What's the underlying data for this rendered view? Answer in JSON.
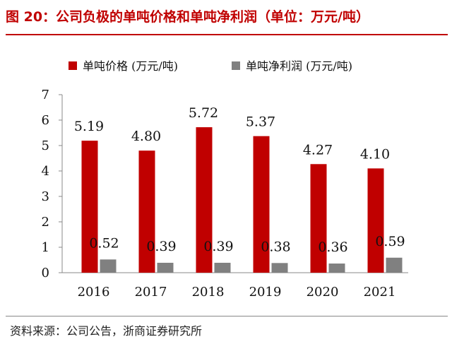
{
  "figure": {
    "title": "图 20：公司负极的单吨价格和单吨净利润（单位：万元/吨）",
    "source": "资料来源：公司公告，浙商证券研究所"
  },
  "chart_data": {
    "type": "bar",
    "categories": [
      "2016",
      "2017",
      "2018",
      "2019",
      "2020",
      "2021"
    ],
    "series": [
      {
        "name": "单吨价格 (万元/吨)",
        "values": [
          5.19,
          4.8,
          5.72,
          5.37,
          4.27,
          4.1
        ],
        "labels": [
          "5.19",
          "4.80",
          "5.72",
          "5.37",
          "4.27",
          "4.10"
        ],
        "color": "#c00000"
      },
      {
        "name": "单吨净利润 (万元/吨)",
        "values": [
          0.52,
          0.39,
          0.39,
          0.38,
          0.36,
          0.59
        ],
        "labels": [
          "0.52",
          "0.39",
          "0.39",
          "0.38",
          "0.36",
          "0.59"
        ],
        "color": "#808080"
      }
    ],
    "yticks": [
      "0",
      "1",
      "2",
      "3",
      "4",
      "5",
      "6",
      "7"
    ],
    "ylim": [
      0,
      7
    ],
    "legend": "top-left",
    "grid": false
  }
}
